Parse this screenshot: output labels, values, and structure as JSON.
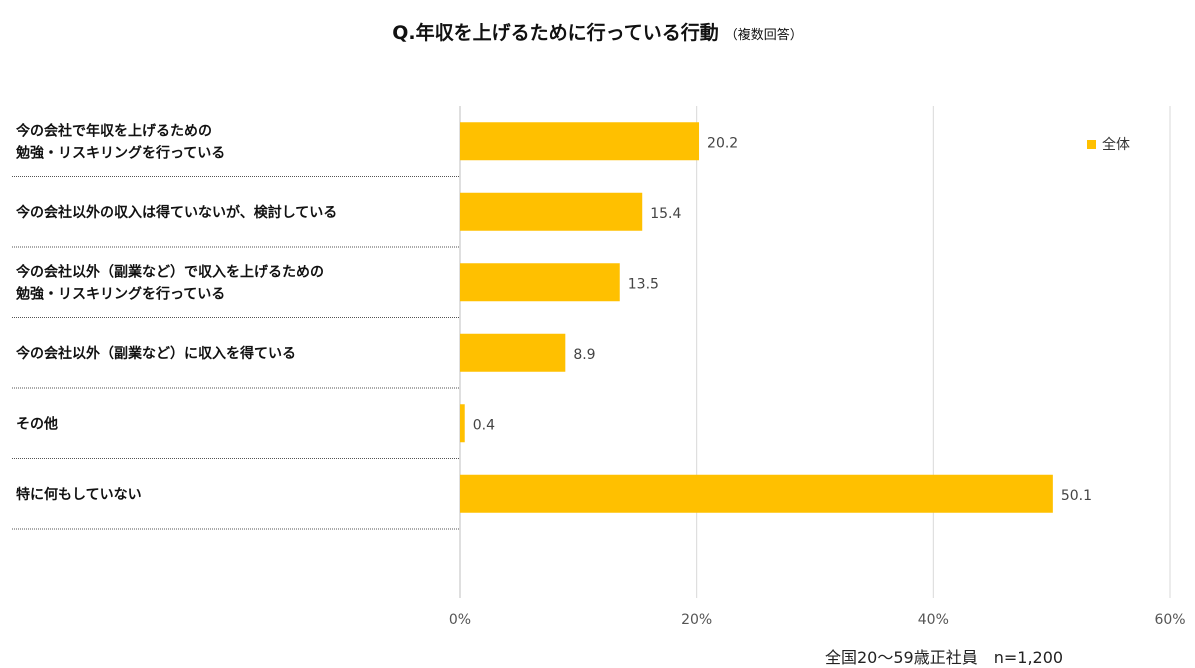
{
  "title": {
    "main": "Q.年収を上げるために行っている行動",
    "sub": "（複数回答）"
  },
  "chart_data": {
    "type": "bar",
    "orientation": "horizontal",
    "title": "Q.年収を上げるために行っている行動（複数回答）",
    "categories": [
      [
        "今の会社で年収を上げるための",
        "勉強・リスキリングを行っている"
      ],
      [
        "今の会社以外の収入は得ていないが、検討している"
      ],
      [
        "今の会社以外（副業など）で収入を上げるための",
        "勉強・リスキリングを行っている"
      ],
      [
        "今の会社以外（副業など）に収入を得ている"
      ],
      [
        "その他"
      ],
      [
        "特に何もしていない"
      ]
    ],
    "series": [
      {
        "name": "全体",
        "values": [
          20.2,
          15.4,
          13.5,
          8.9,
          0.4,
          50.1
        ],
        "color": "#FFC000"
      }
    ],
    "value_labels": [
      "20.2",
      "15.4",
      "13.5",
      "8.9",
      "0.4",
      "50.1"
    ],
    "xlim": [
      0,
      60
    ],
    "ticks": [
      0,
      20,
      40,
      60
    ],
    "tick_labels": [
      "0%",
      "20%",
      "40%",
      "60%"
    ],
    "legend_position": "top-right",
    "grid": true
  },
  "legend": {
    "label": "全体"
  },
  "footnote": "全国20～59歳正社員　n=1,200"
}
